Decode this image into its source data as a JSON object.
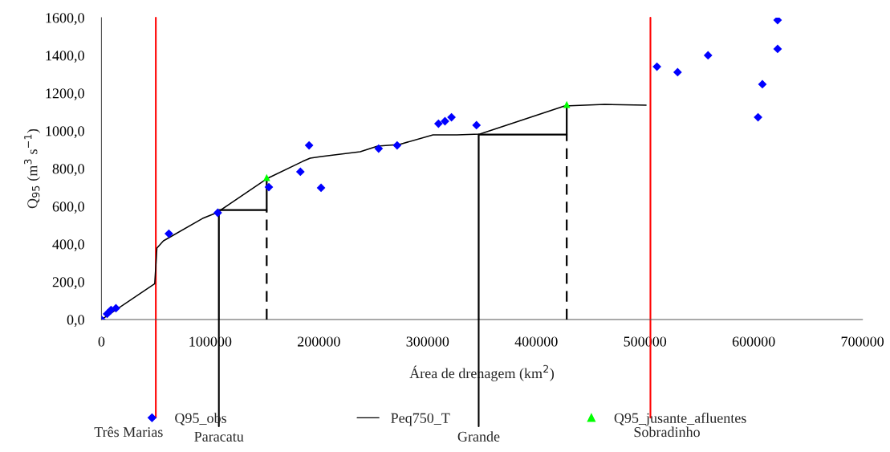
{
  "chart_data": {
    "type": "scatter",
    "xlabel": "Área de drenagem (km$^{2}$)",
    "ylabel": "Q$_{95}$ (m$^{3}$ s$^{−1}$)",
    "xlim": [
      0,
      700000
    ],
    "xticks": [
      0,
      100000,
      200000,
      300000,
      400000,
      500000,
      600000,
      700000
    ],
    "ylim": [
      0,
      1600
    ],
    "yticks": [
      {
        "value": 0,
        "label": "0,0"
      },
      {
        "value": 200,
        "label": "200,0"
      },
      {
        "value": 400,
        "label": "400,0"
      },
      {
        "value": 600,
        "label": "600,0"
      },
      {
        "value": 800,
        "label": "800,0"
      },
      {
        "value": 1000,
        "label": "1000,0"
      },
      {
        "value": 1200,
        "label": "1200,0"
      },
      {
        "value": 1400,
        "label": "1400,0"
      },
      {
        "value": 1600,
        "label": "1600,0"
      }
    ],
    "grid": false,
    "legend": "bottom",
    "series": [
      {
        "name": "Q95_obs",
        "marker": "diamond",
        "color": "#0000ff",
        "x": [
          0,
          5200,
          8800,
          13300,
          62000,
          107000,
          154000,
          183000,
          191000,
          202000,
          255000,
          272000,
          310000,
          316000,
          322000,
          345000,
          511000,
          530000,
          558000,
          604000,
          608000,
          622000,
          622000
        ],
        "values": [
          0,
          30,
          51,
          60,
          455,
          566,
          702,
          783,
          923,
          698,
          906,
          923,
          1038,
          1051,
          1072,
          1030,
          1340,
          1311,
          1400,
          1072,
          1247,
          1434,
          1587
        ]
      },
      {
        "name": "Peq750_T",
        "type": "line",
        "marker": "none",
        "line_style": "solid",
        "color": "#000000",
        "x": [
          0,
          49000,
          51000,
          57000,
          93000,
          106000,
          153000,
          185000,
          192000,
          202000,
          238000,
          254000,
          274000,
          305000,
          327000,
          348000,
          426000,
          463000,
          501000
        ],
        "values": [
          0,
          190,
          379,
          417,
          536,
          566,
          749,
          838,
          855,
          864,
          889,
          919,
          928,
          979,
          979,
          983,
          1132,
          1140,
          1136
        ]
      },
      {
        "name": "Q95_jusante_afluentes",
        "marker": "triangle",
        "color": "#00ff00",
        "x": [
          152000,
          428000
        ],
        "values": [
          753,
          1140
        ]
      },
      {
        "type": "line",
        "marker": "none",
        "line_style": "solid",
        "color": "#000000",
        "x": [
          108000,
          108000,
          152000,
          152000
        ],
        "values": [
          0,
          580,
          580,
          750
        ]
      },
      {
        "type": "line",
        "marker": "none",
        "line_style": "dashed",
        "color": "#000000",
        "x": [
          152000,
          152000
        ],
        "values": [
          0,
          580
        ]
      },
      {
        "type": "line",
        "marker": "none",
        "line_style": "solid",
        "color": "#000000",
        "x": [
          347000,
          347000,
          428000,
          428000
        ],
        "values": [
          0,
          980,
          980,
          1140
        ]
      },
      {
        "type": "line",
        "marker": "none",
        "line_style": "dashed",
        "color": "#000000",
        "x": [
          428000,
          428000
        ],
        "values": [
          0,
          980
        ]
      }
    ],
    "ref_lines": [
      {
        "axis": "x",
        "value": 50000,
        "label": "Três Marias",
        "color": "#ff0000"
      },
      {
        "axis": "x",
        "value": 505000,
        "label": "Sobradinho",
        "color": "#ff0000"
      }
    ],
    "annotations": [
      {
        "text": "Paracatu",
        "x": 108000,
        "y": 0
      },
      {
        "text": "Grande",
        "x": 347000,
        "y": 0
      }
    ]
  }
}
